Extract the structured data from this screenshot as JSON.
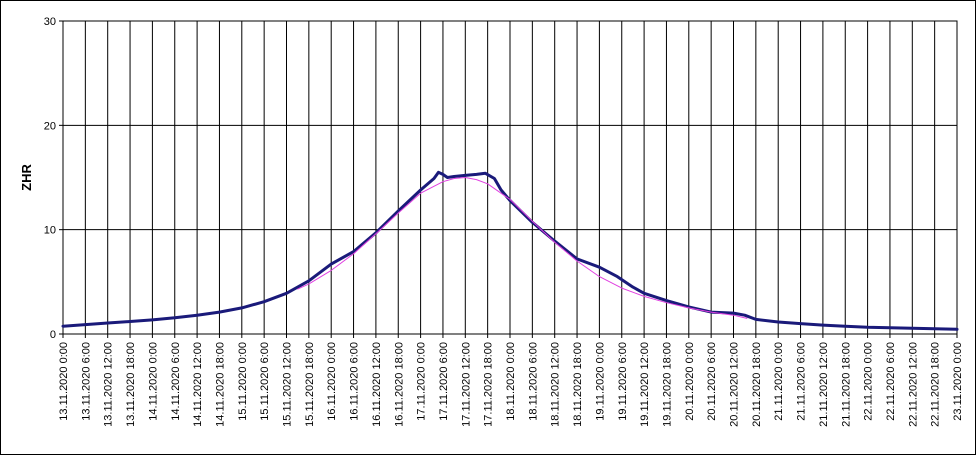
{
  "chart_data": {
    "type": "line",
    "ylabel": "ZHR",
    "xlabel": "",
    "ylim": [
      0,
      30
    ],
    "y_ticks": [
      "0",
      "10",
      "20",
      "30"
    ],
    "grid": true,
    "legend": "none",
    "categories": [
      "13.11.2020 0:00",
      "13.11.2020 6:00",
      "13.11.2020 12:00",
      "13.11.2020 18:00",
      "14.11.2020 0:00",
      "14.11.2020 6:00",
      "14.11.2020 12:00",
      "14.11.2020 18:00",
      "15.11.2020 0:00",
      "15.11.2020 6:00",
      "15.11.2020 12:00",
      "15.11.2020 18:00",
      "16.11.2020 0:00",
      "16.11.2020 6:00",
      "16.11.2020 12:00",
      "16.11.2020 18:00",
      "17.11.2020 0:00",
      "17.11.2020 6:00",
      "17.11.2020 12:00",
      "17.11.2020 18:00",
      "18.11.2020 0:00",
      "18.11.2020 6:00",
      "18.11.2020 12:00",
      "18.11.2020 18:00",
      "19.11.2020 0:00",
      "19.11.2020 6:00",
      "19.11.2020 12:00",
      "19.11.2020 18:00",
      "20.11.2020 0:00",
      "20.11.2020 6:00",
      "20.11.2020 12:00",
      "20.11.2020 18:00",
      "21.11.2020 0:00",
      "21.11.2020 6:00",
      "21.11.2020 12:00",
      "21.11.2020 18:00",
      "22.11.2020 0:00",
      "22.11.2020 6:00",
      "22.11.2020 12:00",
      "22.11.2020 18:00",
      "23.11.2020 0:00"
    ],
    "series": [
      {
        "color": "#1a1a7a",
        "width": 3,
        "points": [
          [
            0,
            0.75
          ],
          [
            1,
            0.9
          ],
          [
            2,
            1.05
          ],
          [
            3,
            1.2
          ],
          [
            4,
            1.35
          ],
          [
            5,
            1.55
          ],
          [
            6,
            1.8
          ],
          [
            7,
            2.1
          ],
          [
            8,
            2.5
          ],
          [
            9,
            3.1
          ],
          [
            10,
            3.9
          ],
          [
            11,
            5.1
          ],
          [
            12,
            6.7
          ],
          [
            12.5,
            7.3
          ],
          [
            13,
            7.9
          ],
          [
            14,
            9.7
          ],
          [
            15,
            11.8
          ],
          [
            16,
            13.8
          ],
          [
            16.6,
            14.9
          ],
          [
            16.8,
            15.5
          ],
          [
            17,
            15.3
          ],
          [
            17.2,
            15.0
          ],
          [
            17.5,
            15.1
          ],
          [
            18,
            15.2
          ],
          [
            18.5,
            15.3
          ],
          [
            18.9,
            15.4
          ],
          [
            19.3,
            14.9
          ],
          [
            19.6,
            13.8
          ],
          [
            20,
            12.8
          ],
          [
            21,
            10.7
          ],
          [
            22,
            8.9
          ],
          [
            23,
            7.2
          ],
          [
            24,
            6.4
          ],
          [
            24.8,
            5.5
          ],
          [
            25.5,
            4.5
          ],
          [
            26,
            3.9
          ],
          [
            27,
            3.2
          ],
          [
            28,
            2.6
          ],
          [
            29,
            2.1
          ],
          [
            30,
            2.0
          ],
          [
            30.5,
            1.8
          ],
          [
            31,
            1.4
          ],
          [
            32,
            1.15
          ],
          [
            33,
            1.0
          ],
          [
            34,
            0.85
          ],
          [
            35,
            0.75
          ],
          [
            36,
            0.65
          ],
          [
            37,
            0.6
          ],
          [
            38,
            0.55
          ],
          [
            39,
            0.5
          ],
          [
            40,
            0.45
          ]
        ]
      },
      {
        "color": "#e040e0",
        "width": 1,
        "points": [
          [
            10.5,
            4.3
          ],
          [
            11,
            4.8
          ],
          [
            12,
            6.1
          ],
          [
            13,
            7.7
          ],
          [
            14,
            9.6
          ],
          [
            15,
            11.6
          ],
          [
            16,
            13.5
          ],
          [
            17,
            14.6
          ],
          [
            17.5,
            14.9
          ],
          [
            18,
            15.0
          ],
          [
            18.5,
            14.8
          ],
          [
            19,
            14.4
          ],
          [
            20,
            12.9
          ],
          [
            21,
            10.8
          ],
          [
            22,
            8.8
          ],
          [
            23,
            7.0
          ],
          [
            24,
            5.5
          ],
          [
            25,
            4.4
          ],
          [
            26,
            3.6
          ],
          [
            27,
            3.0
          ],
          [
            28,
            2.5
          ],
          [
            29,
            2.1
          ],
          [
            30,
            1.8
          ],
          [
            30.6,
            1.5
          ]
        ]
      }
    ]
  }
}
